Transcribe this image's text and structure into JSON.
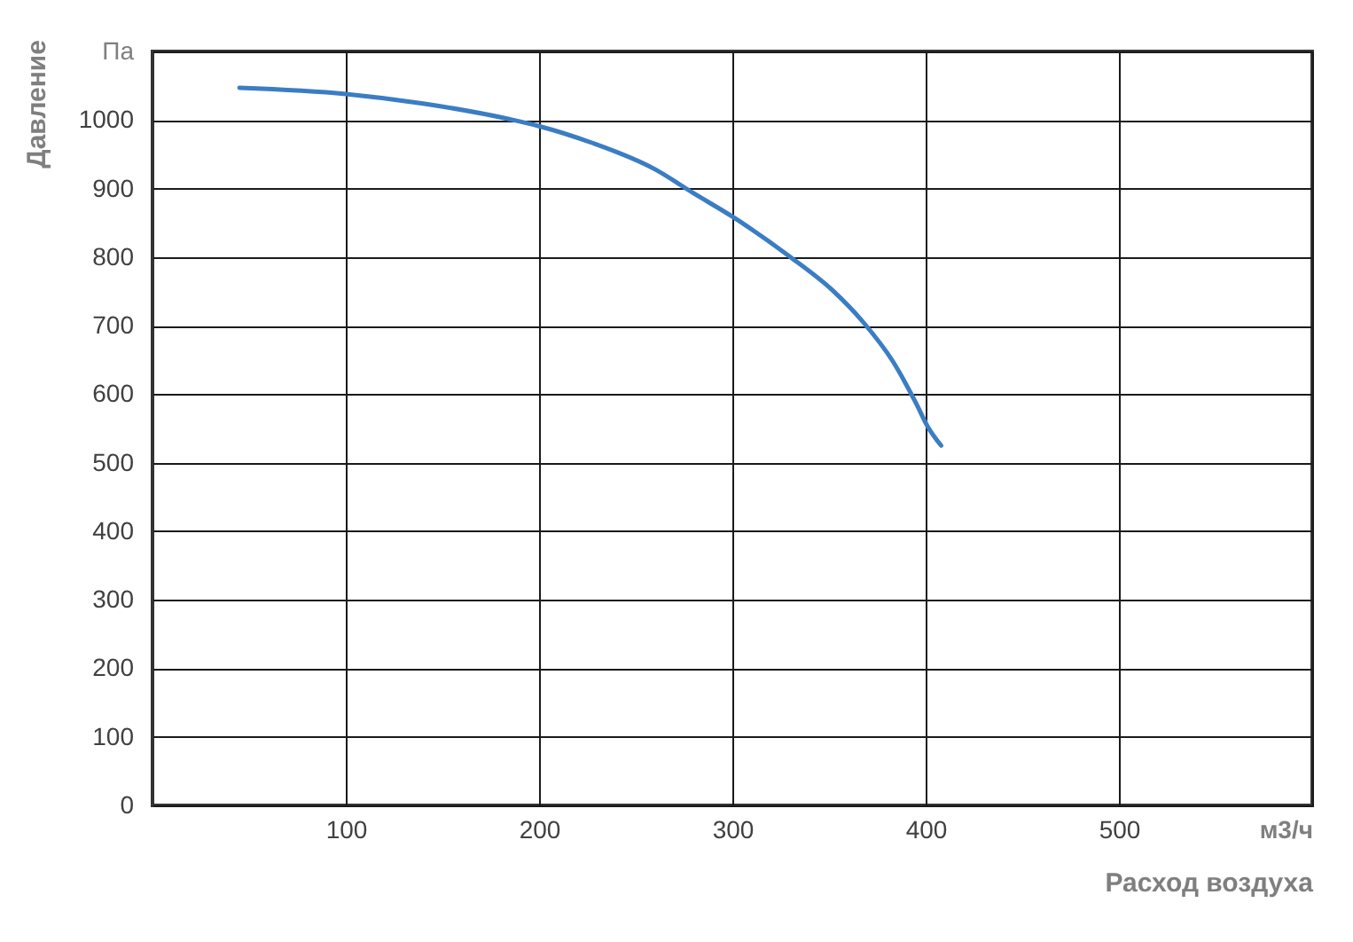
{
  "chart_data": {
    "type": "line",
    "xlabel": "Расход воздуха",
    "ylabel": "Давление",
    "x": [
      45,
      100,
      140,
      185,
      200,
      227,
      260,
      280,
      300,
      330,
      352,
      368,
      383,
      395,
      401,
      408
    ],
    "series": [
      {
        "color": "#3b7dc4",
        "values": [
          1047,
          1038,
          1024,
          1001,
          991,
          967,
          928,
          893,
          859,
          800,
          751,
          704,
          648,
          587,
          553,
          525
        ]
      }
    ],
    "xlim": [
      0,
      600
    ],
    "xticks": [
      100,
      200,
      300,
      400,
      500,
      {
        "value": 600,
        "label": "м3/ч"
      }
    ],
    "ylim": [
      0,
      1100
    ],
    "yticks": [
      0,
      100,
      200,
      300,
      400,
      500,
      600,
      700,
      800,
      900,
      1000,
      {
        "value": 1100,
        "label": "Па"
      }
    ],
    "grid": true
  }
}
